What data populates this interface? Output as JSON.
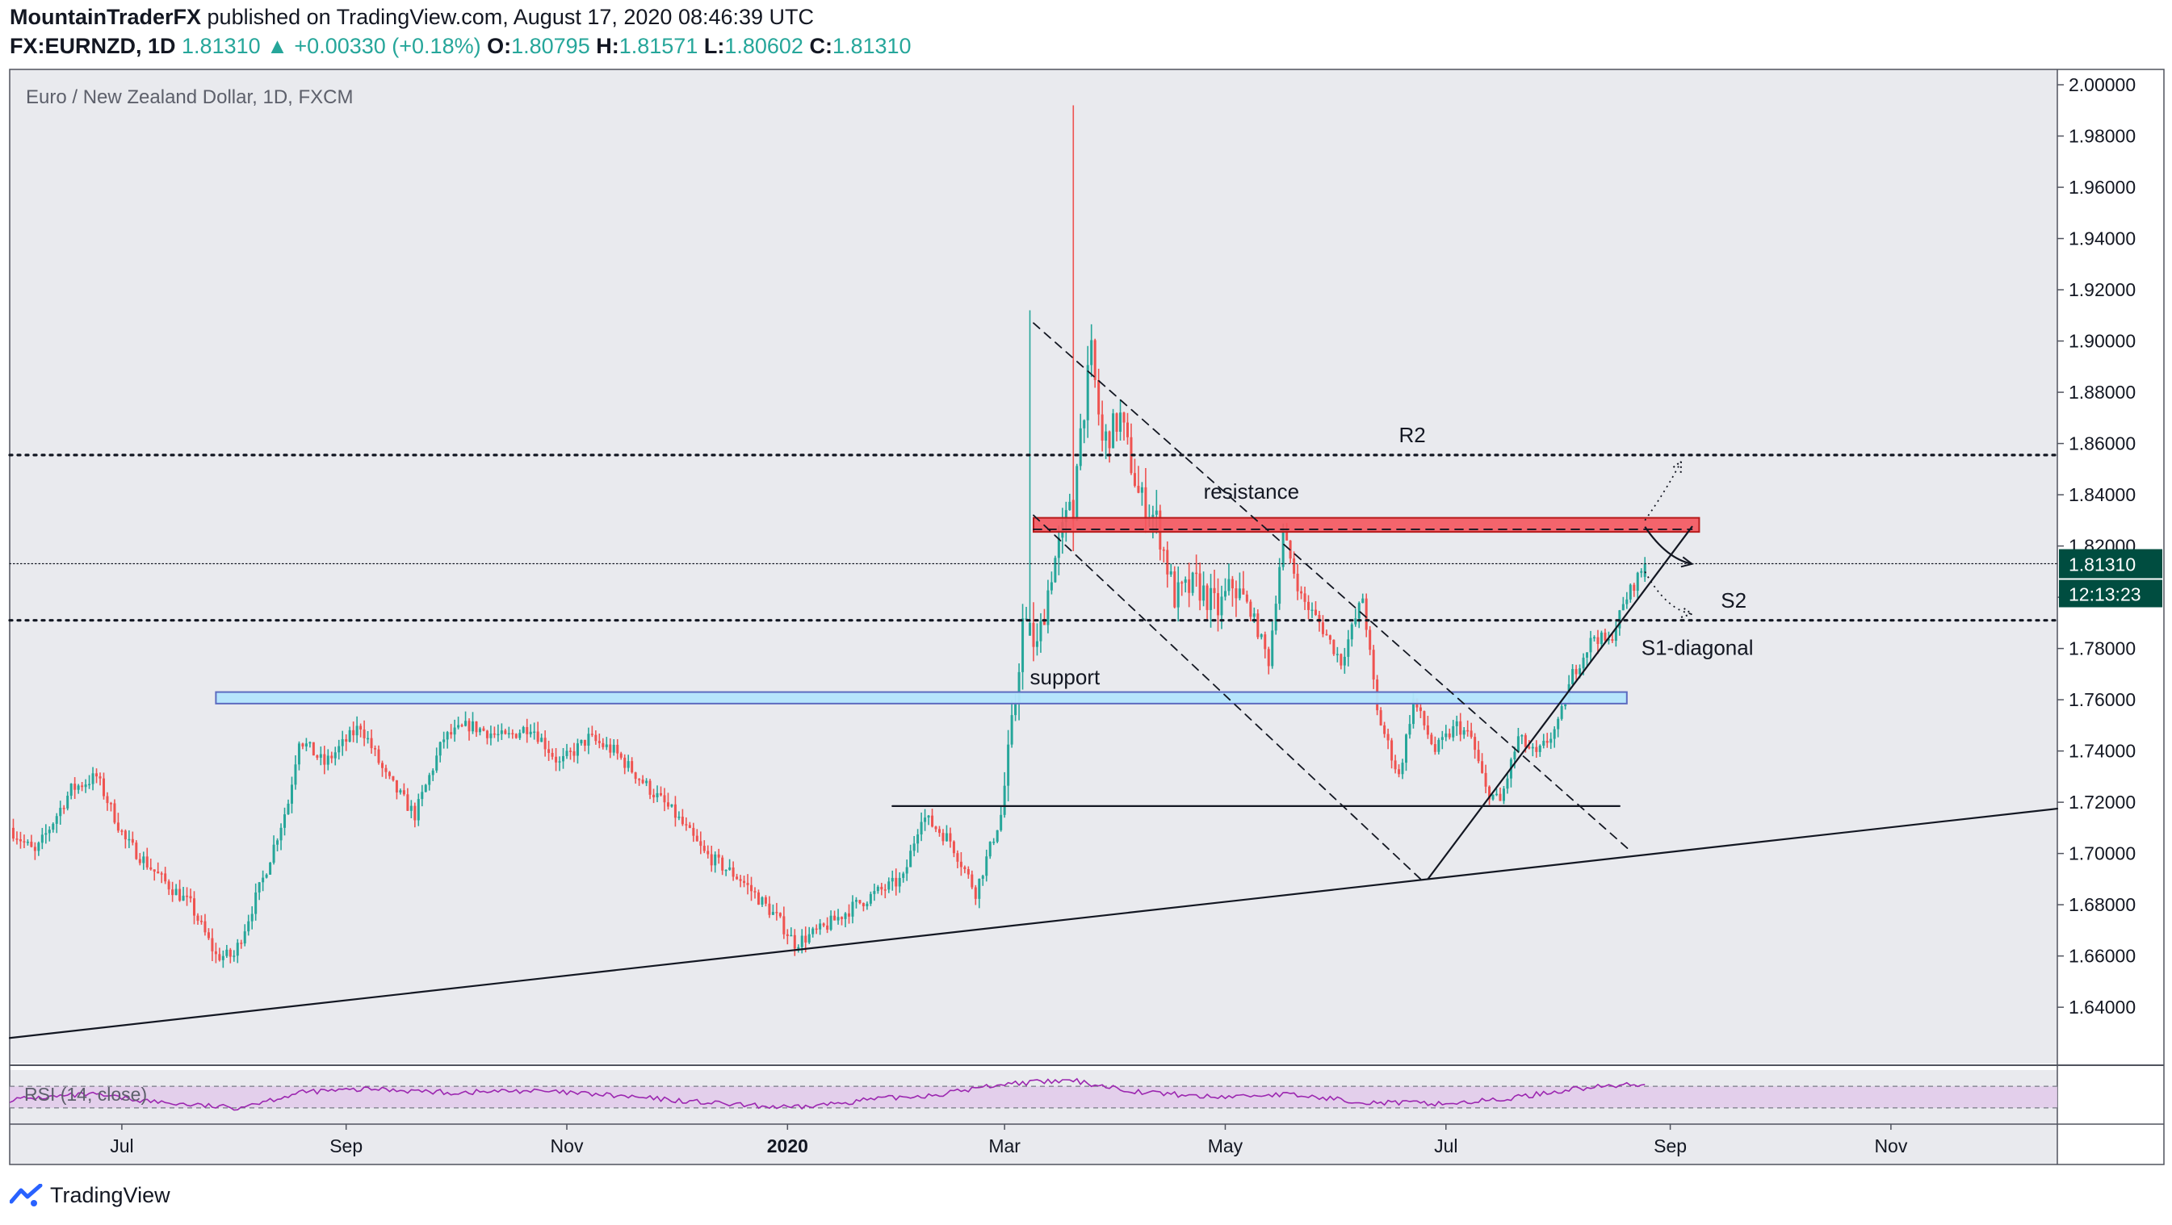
{
  "header": {
    "author": "MountainTraderFX",
    "published_text": "published on TradingView.com, August 17, 2020 08:46:39 UTC",
    "symbol": "FX:EURNZD, 1D",
    "last": "1.81310",
    "change": "+0.00330 (+0.18%)",
    "open_label": "O:",
    "open": "1.80795",
    "high_label": "H:",
    "high": "1.81571",
    "low_label": "L:",
    "low": "1.80602",
    "close_label": "C:",
    "close": "1.81310"
  },
  "chart_title": "Euro / New Zealand Dollar, 1D, FXCM",
  "price_tag": "1.81310",
  "countdown_tag": "12:13:23",
  "rsi_label": "RSI (14, close)",
  "footer_brand": "TradingView",
  "colors": {
    "bull": "#26a69a",
    "bear": "#ef5350",
    "pane_bg": "#e9eaee",
    "resistance": "#f5555d",
    "support": "#b3e5fc",
    "rsi_line": "#9c27b0",
    "rsi_band": "#e1c8ea"
  },
  "chart_data": {
    "type": "candlestick",
    "title": "Euro / New Zealand Dollar, 1D, FXCM",
    "y_axis": {
      "ylim": [
        1.618,
        2.006
      ],
      "ticks": [
        "2.00000",
        "1.98000",
        "1.96000",
        "1.94000",
        "1.92000",
        "1.90000",
        "1.88000",
        "1.86000",
        "1.84000",
        "1.82000",
        "1.80000",
        "1.78000",
        "1.76000",
        "1.74000",
        "1.72000",
        "1.70000",
        "1.68000",
        "1.66000",
        "1.64000"
      ]
    },
    "x_axis": {
      "ticks": [
        {
          "label": "Jul",
          "day": 19
        },
        {
          "label": "Sep",
          "day": 81
        },
        {
          "label": "Nov",
          "day": 142
        },
        {
          "label": "2020",
          "day": 203,
          "bold": true
        },
        {
          "label": "Mar",
          "day": 263
        },
        {
          "label": "May",
          "day": 324
        },
        {
          "label": "Jul",
          "day": 385
        },
        {
          "label": "Sep",
          "day": 447
        },
        {
          "label": "Nov",
          "day": 508
        }
      ],
      "day_range": [
        -12,
        554
      ]
    },
    "price_path": [
      [
        -12,
        1.71
      ],
      [
        -5,
        1.7
      ],
      [
        5,
        1.725
      ],
      [
        12,
        1.73
      ],
      [
        20,
        1.705
      ],
      [
        30,
        1.69
      ],
      [
        38,
        1.68
      ],
      [
        45,
        1.66
      ],
      [
        50,
        1.66
      ],
      [
        58,
        1.69
      ],
      [
        65,
        1.72
      ],
      [
        68,
        1.745
      ],
      [
        75,
        1.735
      ],
      [
        85,
        1.75
      ],
      [
        92,
        1.73
      ],
      [
        100,
        1.715
      ],
      [
        108,
        1.745
      ],
      [
        115,
        1.75
      ],
      [
        125,
        1.745
      ],
      [
        132,
        1.75
      ],
      [
        140,
        1.735
      ],
      [
        148,
        1.745
      ],
      [
        155,
        1.74
      ],
      [
        165,
        1.725
      ],
      [
        172,
        1.715
      ],
      [
        180,
        1.7
      ],
      [
        190,
        1.69
      ],
      [
        200,
        1.675
      ],
      [
        205,
        1.665
      ],
      [
        212,
        1.67
      ],
      [
        222,
        1.68
      ],
      [
        228,
        1.685
      ],
      [
        235,
        1.69
      ],
      [
        240,
        1.715
      ],
      [
        248,
        1.705
      ],
      [
        255,
        1.685
      ],
      [
        262,
        1.715
      ],
      [
        266,
        1.76
      ],
      [
        268,
        1.79
      ],
      [
        272,
        1.78
      ],
      [
        276,
        1.81
      ],
      [
        280,
        1.83
      ],
      [
        284,
        1.865
      ],
      [
        287,
        1.895
      ],
      [
        290,
        1.86
      ],
      [
        295,
        1.87
      ],
      [
        300,
        1.84
      ],
      [
        305,
        1.83
      ],
      [
        310,
        1.8
      ],
      [
        316,
        1.805
      ],
      [
        322,
        1.795
      ],
      [
        326,
        1.805
      ],
      [
        331,
        1.795
      ],
      [
        336,
        1.775
      ],
      [
        340,
        1.825
      ],
      [
        345,
        1.8
      ],
      [
        350,
        1.79
      ],
      [
        356,
        1.775
      ],
      [
        362,
        1.8
      ],
      [
        366,
        1.755
      ],
      [
        372,
        1.73
      ],
      [
        376,
        1.76
      ],
      [
        382,
        1.74
      ],
      [
        388,
        1.75
      ],
      [
        392,
        1.745
      ],
      [
        396,
        1.725
      ],
      [
        400,
        1.72
      ],
      [
        405,
        1.745
      ],
      [
        410,
        1.738
      ],
      [
        416,
        1.75
      ],
      [
        420,
        1.77
      ],
      [
        426,
        1.785
      ],
      [
        430,
        1.782
      ],
      [
        435,
        1.8
      ],
      [
        440,
        1.813
      ]
    ],
    "special_candles": [
      {
        "day": 270,
        "open": 1.785,
        "close": 1.79,
        "high": 1.912,
        "low": 1.785
      },
      {
        "day": 282,
        "open": 1.838,
        "close": 1.83,
        "high": 1.992,
        "low": 1.818
      }
    ],
    "lines": [
      {
        "name": "R2",
        "type": "horizontal",
        "style": "dotted",
        "price": 1.8555,
        "label": "R2"
      },
      {
        "name": "S2",
        "type": "horizontal",
        "style": "dotted",
        "price": 1.791,
        "label": "S2"
      },
      {
        "name": "last-price",
        "type": "horizontal",
        "style": "fine-dotted",
        "price": 1.8131
      },
      {
        "name": "horizontal-low",
        "type": "segment",
        "from": [
          232,
          1.7185
        ],
        "to": [
          433,
          1.7185
        ]
      },
      {
        "name": "long-trendline",
        "type": "segment",
        "from": [
          -12,
          1.628
        ],
        "to": [
          554,
          1.7175
        ]
      },
      {
        "name": "S1-diagonal",
        "type": "segment",
        "from": [
          380,
          1.69
        ],
        "to": [
          453,
          1.8275
        ],
        "label": "S1-diagonal"
      },
      {
        "name": "channel-upper",
        "type": "segment",
        "style": "dashed",
        "from": [
          271,
          1.907
        ],
        "to": [
          436,
          1.701
        ]
      },
      {
        "name": "channel-lower",
        "type": "segment",
        "style": "dashed",
        "from": [
          271,
          1.832
        ],
        "to": [
          378,
          1.69
        ]
      },
      {
        "name": "resistance-dashed",
        "type": "segment",
        "style": "dashed",
        "from": [
          271,
          1.8265
        ],
        "to": [
          453,
          1.8265
        ]
      }
    ],
    "zones": [
      {
        "name": "resistance",
        "label": "resistance",
        "from_day": 271,
        "to_day": 455,
        "top": 1.831,
        "bottom": 1.8255
      },
      {
        "name": "support",
        "label": "support",
        "from_day": 45,
        "to_day": 435,
        "top": 1.763,
        "bottom": 1.7585
      }
    ],
    "projections": [
      {
        "name": "main-projection",
        "style": "solid",
        "points": [
          [
            440,
            1.8275
          ],
          [
            446,
            1.815
          ],
          [
            453,
            1.813
          ]
        ]
      },
      {
        "name": "up-projection",
        "style": "dotted",
        "points": [
          [
            440,
            1.83
          ],
          [
            446,
            1.842
          ],
          [
            450,
            1.853
          ]
        ]
      },
      {
        "name": "down-projection",
        "style": "dotted",
        "points": [
          [
            440,
            1.81
          ],
          [
            446,
            1.795
          ],
          [
            453,
            1.7935
          ]
        ]
      }
    ],
    "rsi": {
      "label": "RSI (14, close)",
      "levels": [
        30,
        70
      ],
      "points": [
        [
          -12,
          45
        ],
        [
          10,
          55
        ],
        [
          30,
          40
        ],
        [
          50,
          30
        ],
        [
          70,
          60
        ],
        [
          90,
          65
        ],
        [
          110,
          58
        ],
        [
          130,
          62
        ],
        [
          150,
          55
        ],
        [
          170,
          45
        ],
        [
          190,
          35
        ],
        [
          205,
          30
        ],
        [
          225,
          45
        ],
        [
          245,
          55
        ],
        [
          263,
          75
        ],
        [
          282,
          80
        ],
        [
          300,
          60
        ],
        [
          320,
          50
        ],
        [
          340,
          55
        ],
        [
          365,
          40
        ],
        [
          385,
          38
        ],
        [
          400,
          45
        ],
        [
          420,
          65
        ],
        [
          440,
          75
        ]
      ]
    }
  }
}
